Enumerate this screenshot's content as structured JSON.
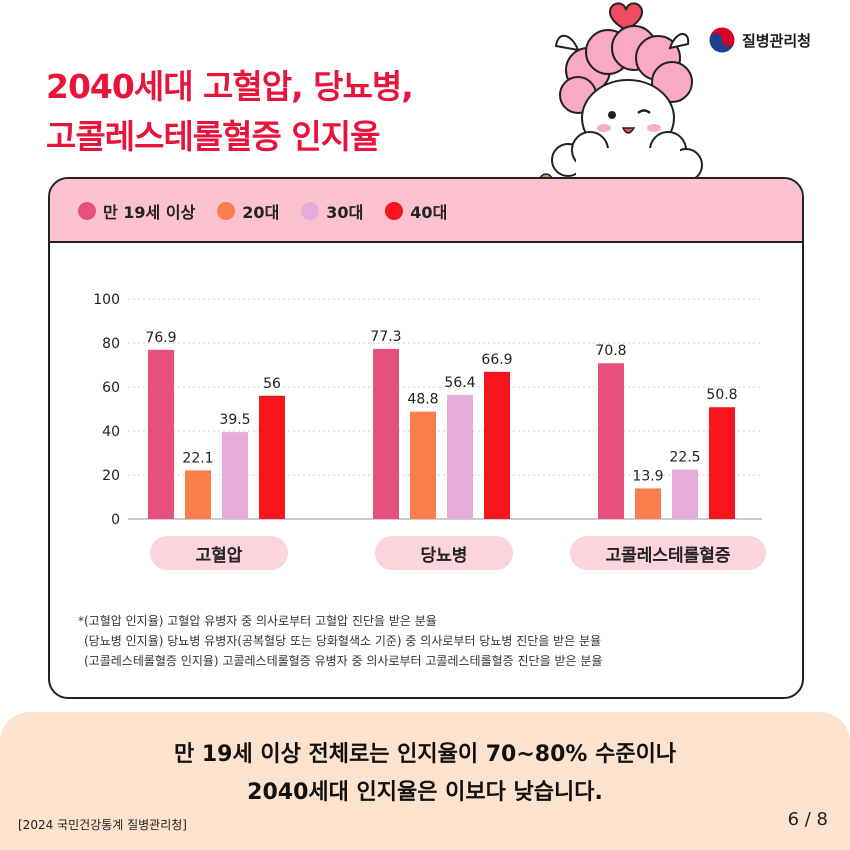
{
  "title": {
    "line1": "2040세대 고혈압, 당뇨병,",
    "line2": "고콜레스테롤혈증 인지율"
  },
  "logo": {
    "text": "질병관리청"
  },
  "legend": [
    {
      "label": "만 19세 이상",
      "color": "#e5507c"
    },
    {
      "label": "20대",
      "color": "#fa7f4d"
    },
    {
      "label": "30대",
      "color": "#e5acd8"
    },
    {
      "label": "40대",
      "color": "#f7141c"
    }
  ],
  "chart_data": {
    "type": "bar",
    "categories": [
      "고혈압",
      "당뇨병",
      "고콜레스테롤혈증"
    ],
    "series": [
      {
        "name": "만 19세 이상",
        "values": [
          76.9,
          77.3,
          70.8
        ]
      },
      {
        "name": "20대",
        "values": [
          22.1,
          48.8,
          13.9
        ]
      },
      {
        "name": "30대",
        "values": [
          39.5,
          56.4,
          22.5
        ]
      },
      {
        "name": "40대",
        "values": [
          56,
          66.9,
          50.8
        ]
      }
    ],
    "yticks": [
      0,
      20,
      40,
      60,
      80,
      100
    ],
    "ylim": [
      0,
      100
    ],
    "grid": true
  },
  "notes": [
    "*(고혈압 인지율) 고혈압 유병자 중 의사로부터 고혈압 진단을 받은 분율",
    "(당뇨병 인지율) 당뇨병 유병자(공복혈당 또는 당화혈색소 기준) 중 의사로부터 당뇨병 진단을 받은 분율",
    "(고콜레스테롤혈증 인지율) 고콜레스테롤혈증 유병자 중 의사로부터 고콜레스테롤혈증 진단을 받은 분율"
  ],
  "bottom": {
    "line1": "만 19세 이상 전체로는 인지율이 70~80% 수준이나",
    "line2": "2040세대 인지율은 이보다 낮습니다."
  },
  "source": "[2024 국민건강통계 질병관리청]",
  "pager": "6 / 8"
}
